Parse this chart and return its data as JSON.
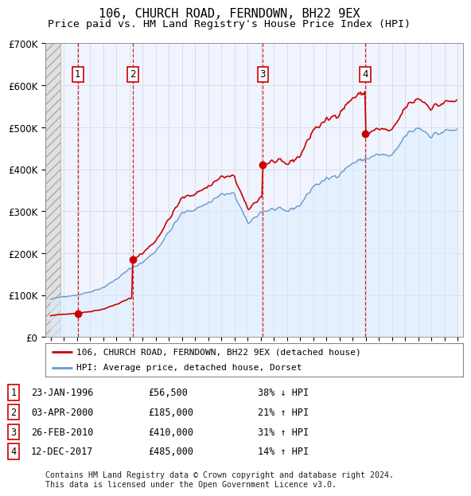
{
  "title": "106, CHURCH ROAD, FERNDOWN, BH22 9EX",
  "subtitle": "Price paid vs. HM Land Registry's House Price Index (HPI)",
  "title_fontsize": 11,
  "subtitle_fontsize": 9.5,
  "ylim": [
    0,
    700000
  ],
  "yticks": [
    0,
    100000,
    200000,
    300000,
    400000,
    500000,
    600000,
    700000
  ],
  "ytick_labels": [
    "£0",
    "£100K",
    "£200K",
    "£300K",
    "£400K",
    "£500K",
    "£600K",
    "£700K"
  ],
  "xlim_start": 1993.6,
  "xlim_end": 2025.4,
  "hatch_end": 1994.75,
  "sales": [
    {
      "label": "1",
      "date_num": 1996.07,
      "price": 56500
    },
    {
      "label": "2",
      "date_num": 2000.25,
      "price": 185000
    },
    {
      "label": "3",
      "date_num": 2010.15,
      "price": 410000
    },
    {
      "label": "4",
      "date_num": 2017.95,
      "price": 485000
    }
  ],
  "red_line_color": "#cc0000",
  "blue_line_color": "#6699cc",
  "blue_fill_color": "#ddeeff",
  "vline_color": "#cc0000",
  "box_color": "#cc0000",
  "legend_line1": "106, CHURCH ROAD, FERNDOWN, BH22 9EX (detached house)",
  "legend_line2": "HPI: Average price, detached house, Dorset",
  "table_rows": [
    {
      "num": "1",
      "date": "23-JAN-1996",
      "price": "£56,500",
      "hpi": "38% ↓ HPI"
    },
    {
      "num": "2",
      "date": "03-APR-2000",
      "price": "£185,000",
      "hpi": "21% ↑ HPI"
    },
    {
      "num": "3",
      "date": "26-FEB-2010",
      "price": "£410,000",
      "hpi": "31% ↑ HPI"
    },
    {
      "num": "4",
      "date": "12-DEC-2017",
      "price": "£485,000",
      "hpi": "14% ↑ HPI"
    }
  ],
  "footer": "Contains HM Land Registry data © Crown copyright and database right 2024.\nThis data is licensed under the Open Government Licence v3.0.",
  "background_color": "#ffffff",
  "grid_color": "#cccccc"
}
